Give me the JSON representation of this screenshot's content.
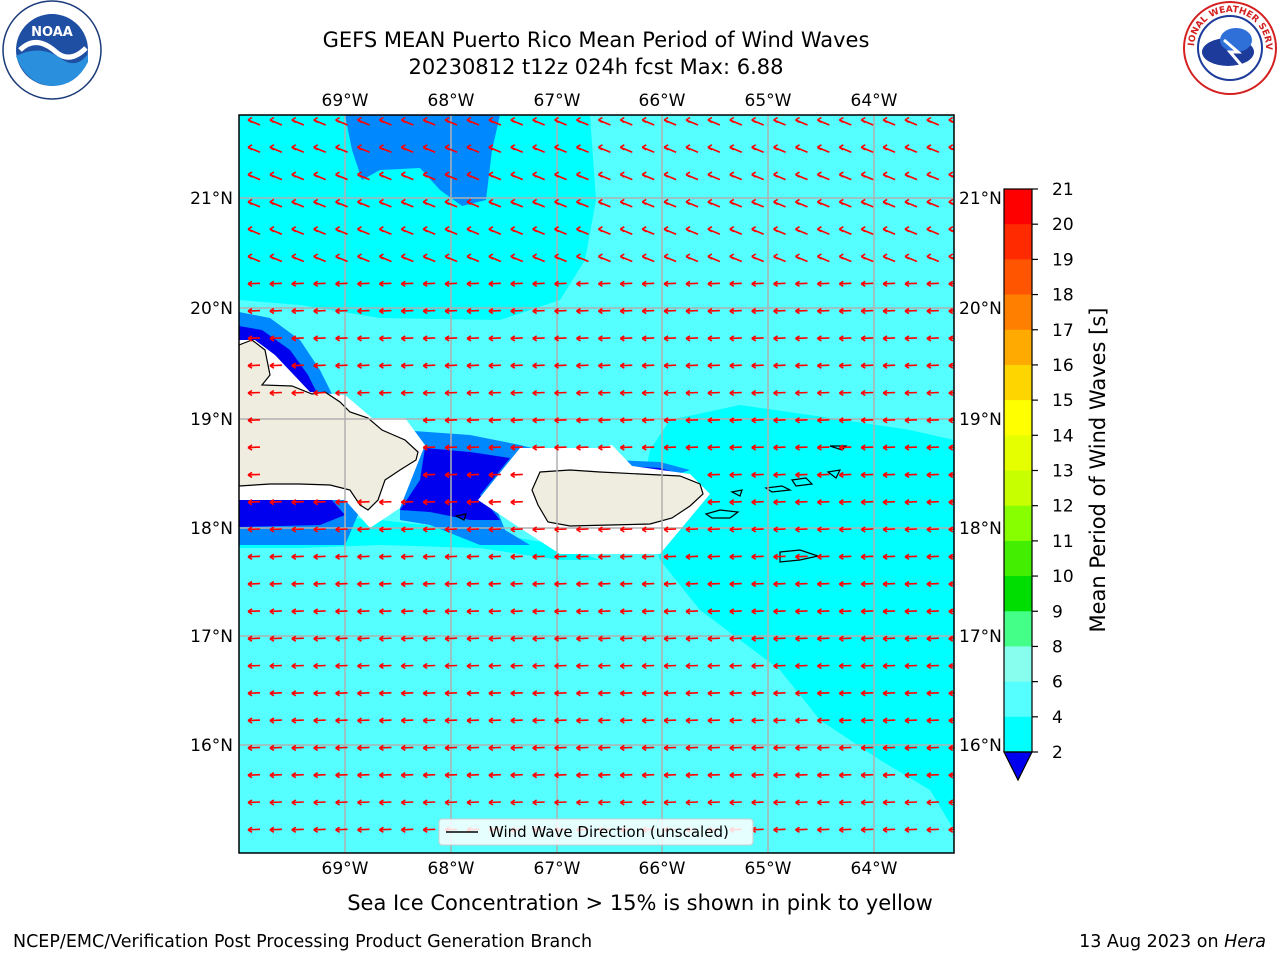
{
  "header": {
    "title_line1": "GEFS MEAN Puerto Rico Mean Period of Wind Waves",
    "title_line2": "20230812 t12z 024h fcst   Max: 6.88"
  },
  "map": {
    "lon_labels": [
      "69°W",
      "68°W",
      "67°W",
      "66°W",
      "65°W",
      "64°W"
    ],
    "lat_labels": [
      "21°N",
      "20°N",
      "19°N",
      "18°N",
      "17°N",
      "16°N"
    ],
    "legend_label": "Wind Wave Direction (unscaled)",
    "arrow_color": "#ff0000",
    "arrow_direction": "toward west (easterly trade winds)"
  },
  "colorbar": {
    "label": "Mean Period of Wind Waves [s]",
    "ticks": [
      "21",
      "20",
      "19",
      "18",
      "17",
      "16",
      "15",
      "14",
      "13",
      "12",
      "11",
      "10",
      "9",
      "8",
      "6",
      "4",
      "2"
    ],
    "colors": [
      "#ff0000",
      "#ff2a00",
      "#ff5500",
      "#ff8000",
      "#ffaa00",
      "#ffd500",
      "#ffff00",
      "#e6ff00",
      "#c8ff00",
      "#88ff00",
      "#44ee00",
      "#00dd00",
      "#44ff88",
      "#88ffee",
      "#55ffff",
      "#00ffff",
      "#0088ff",
      "#0000ee"
    ]
  },
  "caption": "Sea Ice Concentration > 15% is shown in pink to yellow",
  "footer": {
    "left": "NCEP/EMC/Verification Post Processing Product Generation Branch",
    "right_date": "13 Aug 2023 on",
    "right_host": "Hera"
  },
  "logos": {
    "left": "NOAA",
    "right": "NATIONAL WEATHER SERVICE"
  }
}
